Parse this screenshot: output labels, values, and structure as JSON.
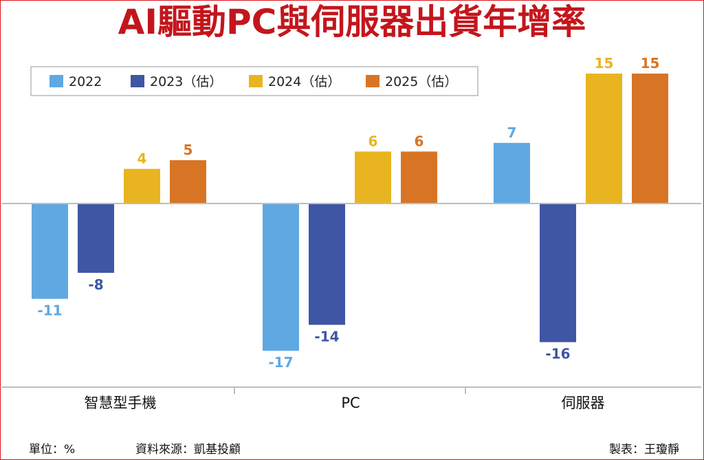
{
  "title": "AI驅動PC與伺服器出貨年增率",
  "footer": {
    "unit": "單位：%",
    "source": "資料來源：凱基投顧",
    "credit": "製表：王瓊靜"
  },
  "colors": {
    "title": "#c3161c",
    "series": [
      "#5fa8e2",
      "#3e56a4",
      "#e8b520",
      "#d87524"
    ]
  },
  "chart_data": {
    "type": "bar",
    "title": "AI驅動PC與伺服器出貨年增率",
    "categories": [
      "智慧型手機",
      "PC",
      "伺服器"
    ],
    "series": [
      {
        "name": "2022",
        "values": [
          -11,
          -17,
          7
        ]
      },
      {
        "name": "2023（估）",
        "values": [
          -8,
          -14,
          -16
        ]
      },
      {
        "name": "2024（估）",
        "values": [
          4,
          6,
          15
        ]
      },
      {
        "name": "2025（估）",
        "values": [
          5,
          6,
          15
        ]
      }
    ],
    "ylim": [
      -20,
      15
    ],
    "grid": false,
    "legend": "top-left",
    "xlabel": "",
    "ylabel": ""
  }
}
